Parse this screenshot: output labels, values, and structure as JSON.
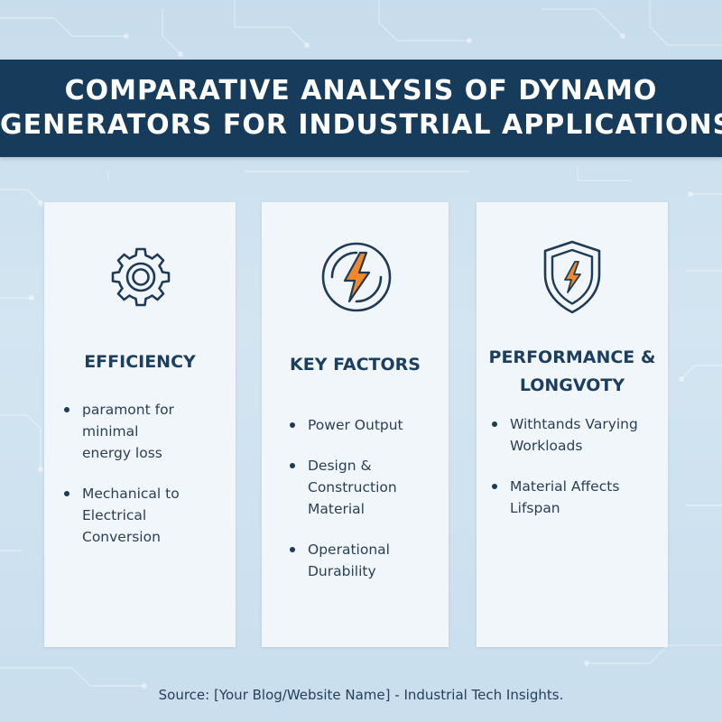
{
  "colors": {
    "header_bg": "#173b5a",
    "accent_orange": "#f0892b",
    "icon_stroke": "#1f3a56",
    "text_dark": "#1c3f5f"
  },
  "header": {
    "title_line1": "COMPARATIVE ANALYSIS OF DYNAMO",
    "title_line2": "GENERATORS FOR INDUSTRIAL APPLICATIONS"
  },
  "cards": [
    {
      "icon": "gear-icon",
      "heading": [
        "EFFICIENCY"
      ],
      "bullets": [
        [
          "paramont for minimal",
          "energy loss"
        ],
        [
          "Mechanical to Electrical",
          "Conversion"
        ]
      ]
    },
    {
      "icon": "lightning-bolt-icon",
      "heading": [
        "KEY FACTORS"
      ],
      "bullets": [
        [
          "Power Output"
        ],
        [
          "Design &",
          "Construction",
          "Material"
        ],
        [
          "Operational",
          "Durability"
        ]
      ]
    },
    {
      "icon": "shield-bolt-icon",
      "heading": [
        "PERFORMANCE &",
        "LONGVOTY"
      ],
      "bullets": [
        [
          "Withtands Varying",
          "Workloads"
        ],
        [
          "Material Affects Lifspan"
        ]
      ]
    }
  ],
  "footer": {
    "source": "Source: [Your Blog/Website Name] - Industrial Tech Insights."
  }
}
